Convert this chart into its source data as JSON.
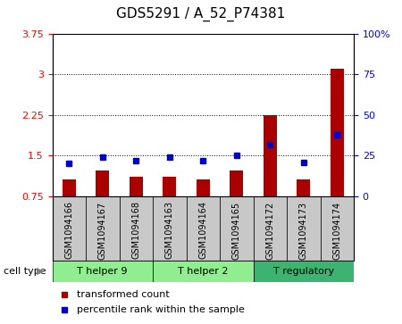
{
  "title": "GDS5291 / A_52_P74381",
  "samples": [
    "GSM1094166",
    "GSM1094167",
    "GSM1094168",
    "GSM1094163",
    "GSM1094164",
    "GSM1094165",
    "GSM1094172",
    "GSM1094173",
    "GSM1094174"
  ],
  "red_values": [
    1.05,
    1.22,
    1.1,
    1.1,
    1.05,
    1.22,
    2.25,
    1.05,
    3.1
  ],
  "blue_pct": [
    20,
    24,
    22,
    24,
    22,
    25,
    32,
    21,
    38
  ],
  "ylim": [
    0.75,
    3.75
  ],
  "ylim_right": [
    0,
    100
  ],
  "yticks_left": [
    0.75,
    1.5,
    2.25,
    3.0,
    3.75
  ],
  "yticks_left_labels": [
    "0.75",
    "1.5",
    "2.25",
    "3",
    "3.75"
  ],
  "yticks_right": [
    0,
    25,
    50,
    75,
    100
  ],
  "yticks_right_labels": [
    "0",
    "25",
    "50",
    "75",
    "100%"
  ],
  "groups": [
    {
      "label": "T helper 9",
      "start": 0,
      "end": 3,
      "color": "#90EE90"
    },
    {
      "label": "T helper 2",
      "start": 3,
      "end": 6,
      "color": "#90EE90"
    },
    {
      "label": "T regulatory",
      "start": 6,
      "end": 9,
      "color": "#3CB371"
    }
  ],
  "bar_color": "#AA0000",
  "dot_color": "#0000CC",
  "bg_color": "#C8C8C8",
  "bar_width": 0.4,
  "cell_type_label": "cell type",
  "legend_red": "transformed count",
  "legend_blue": "percentile rank within the sample",
  "title_fontsize": 11,
  "tick_fontsize": 8,
  "label_fontsize": 7,
  "group_fontsize": 8
}
